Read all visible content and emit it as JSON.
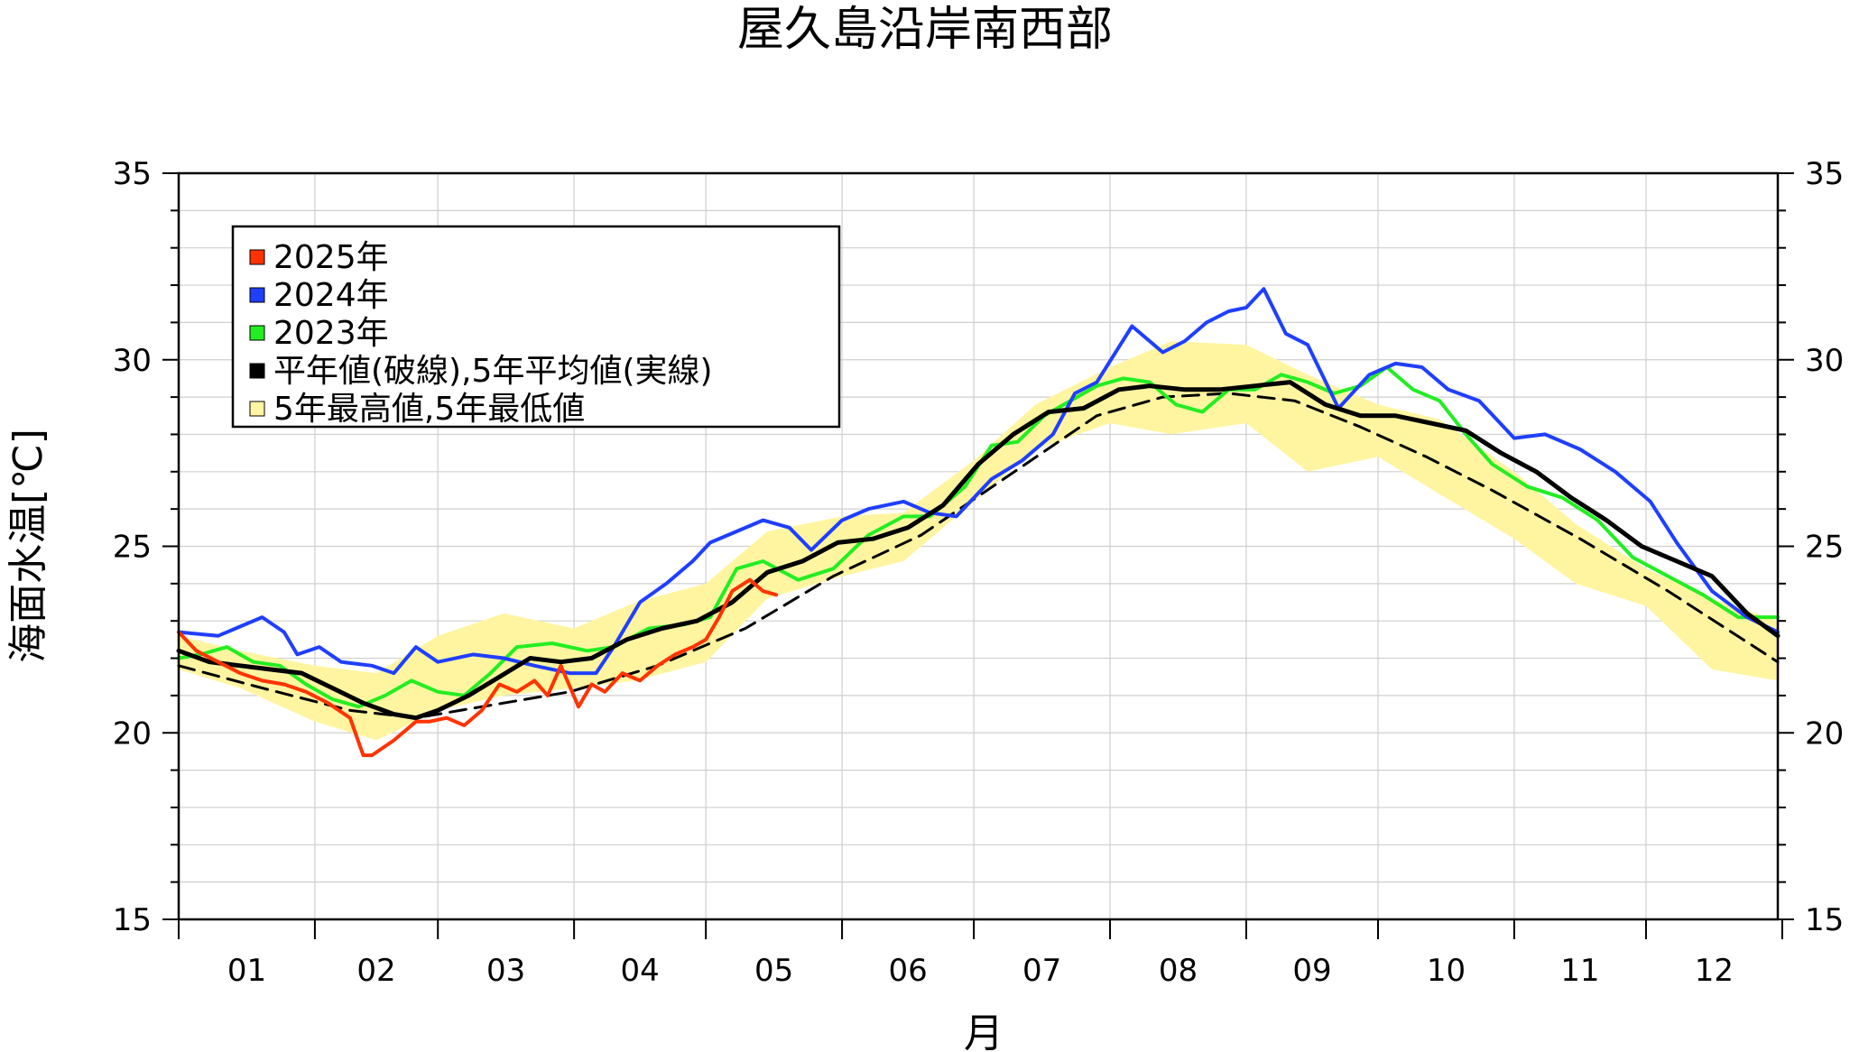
{
  "chart_data": {
    "type": "line",
    "title": "屋久島沿岸南西部",
    "xlabel": "月",
    "ylabel": "海面水温[℃]",
    "ylim": [
      15,
      35
    ],
    "yticks": [
      "15",
      "20",
      "25",
      "30",
      "35"
    ],
    "month_labels": [
      "01",
      "02",
      "03",
      "04",
      "05",
      "06",
      "07",
      "08",
      "09",
      "10",
      "11",
      "12"
    ],
    "grid": true,
    "legend_position": "top-left",
    "legend": [
      {
        "label": "2025年",
        "color": "#ff3300"
      },
      {
        "label": "2024年",
        "color": "#1f3fff"
      },
      {
        "label": "2023年",
        "color": "#22ee22"
      },
      {
        "label": "平年値(破線),5年平均値(実線)",
        "color": "#000000"
      },
      {
        "label": "5年最高値,5年最低値",
        "color": "#fff5a0"
      }
    ],
    "x_unit": "day of year",
    "band_5yr": {
      "x": [
        1,
        15,
        32,
        46,
        60,
        75,
        91,
        105,
        121,
        135,
        152,
        166,
        182,
        196,
        213,
        227,
        244,
        258,
        274,
        288,
        305,
        319,
        335,
        350,
        365
      ],
      "high": [
        22.6,
        22.2,
        21.8,
        21.6,
        22.6,
        23.2,
        22.8,
        23.5,
        24.0,
        25.4,
        25.8,
        25.9,
        27.3,
        28.8,
        29.8,
        30.5,
        30.4,
        29.6,
        28.8,
        28.4,
        27.0,
        25.6,
        24.4,
        23.6,
        23.0
      ],
      "low": [
        21.7,
        21.2,
        20.3,
        19.8,
        20.6,
        21.0,
        21.2,
        21.4,
        21.9,
        23.6,
        24.2,
        24.6,
        26.2,
        27.6,
        28.3,
        28.0,
        28.3,
        27.0,
        27.4,
        26.4,
        25.2,
        24.0,
        23.4,
        21.7,
        21.4
      ]
    },
    "series": [
      {
        "name": "2025年",
        "color": "#ff3300",
        "x": [
          1,
          5,
          10,
          15,
          20,
          25,
          30,
          35,
          40,
          43,
          45,
          50,
          55,
          58,
          62,
          66,
          70,
          74,
          78,
          82,
          85,
          88,
          92,
          95,
          98,
          102,
          106,
          110,
          114,
          118,
          121,
          124,
          127,
          131,
          134,
          137
        ],
        "values": [
          22.7,
          22.2,
          21.9,
          21.6,
          21.4,
          21.3,
          21.1,
          20.8,
          20.4,
          19.4,
          19.4,
          19.8,
          20.3,
          20.3,
          20.4,
          20.2,
          20.6,
          21.3,
          21.1,
          21.4,
          21.0,
          21.8,
          20.7,
          21.3,
          21.1,
          21.6,
          21.4,
          21.8,
          22.1,
          22.3,
          22.5,
          23.1,
          23.8,
          24.1,
          23.8,
          23.7
        ]
      },
      {
        "name": "2024年",
        "color": "#1f3fff",
        "x": [
          1,
          10,
          20,
          25,
          28,
          33,
          38,
          45,
          50,
          55,
          60,
          68,
          75,
          82,
          90,
          96,
          100,
          106,
          112,
          118,
          122,
          128,
          134,
          140,
          145,
          152,
          158,
          166,
          172,
          178,
          186,
          193,
          200,
          205,
          210,
          218,
          225,
          230,
          235,
          240,
          244,
          248,
          253,
          258,
          265,
          272,
          278,
          284,
          290,
          297,
          305,
          312,
          320,
          328,
          336,
          342,
          350,
          358,
          365
        ],
        "values": [
          22.7,
          22.6,
          23.1,
          22.7,
          22.1,
          22.3,
          21.9,
          21.8,
          21.6,
          22.3,
          21.9,
          22.1,
          22.0,
          21.8,
          21.6,
          21.6,
          22.3,
          23.5,
          24.0,
          24.6,
          25.1,
          25.4,
          25.7,
          25.5,
          24.9,
          25.7,
          26.0,
          26.2,
          25.9,
          25.8,
          26.8,
          27.3,
          28.0,
          29.1,
          29.4,
          30.9,
          30.2,
          30.5,
          31.0,
          31.3,
          31.4,
          31.9,
          30.7,
          30.4,
          28.7,
          29.6,
          29.9,
          29.8,
          29.2,
          28.9,
          27.9,
          28.0,
          27.6,
          27.0,
          26.2,
          25.1,
          23.8,
          23.1,
          22.7
        ]
      },
      {
        "name": "2023年",
        "color": "#22ee22",
        "x": [
          1,
          6,
          12,
          18,
          24,
          30,
          36,
          42,
          48,
          54,
          60,
          66,
          72,
          78,
          86,
          94,
          100,
          108,
          116,
          122,
          128,
          134,
          142,
          150,
          158,
          166,
          172,
          180,
          186,
          192,
          198,
          204,
          210,
          216,
          222,
          228,
          234,
          240,
          246,
          252,
          258,
          264,
          270,
          276,
          282,
          288,
          294,
          300,
          308,
          316,
          324,
          332,
          340,
          348,
          356,
          365
        ],
        "values": [
          22.0,
          22.1,
          22.3,
          21.9,
          21.8,
          21.3,
          20.9,
          20.7,
          21.0,
          21.4,
          21.1,
          21.0,
          21.6,
          22.3,
          22.4,
          22.2,
          22.3,
          22.8,
          22.9,
          23.1,
          24.4,
          24.6,
          24.1,
          24.4,
          25.3,
          25.8,
          25.8,
          26.6,
          27.7,
          27.8,
          28.5,
          28.9,
          29.3,
          29.5,
          29.4,
          28.8,
          28.6,
          29.2,
          29.2,
          29.6,
          29.4,
          29.1,
          29.3,
          29.8,
          29.2,
          28.9,
          28.0,
          27.2,
          26.6,
          26.3,
          25.7,
          24.7,
          24.2,
          23.7,
          23.1,
          23.1
        ]
      },
      {
        "name": "5年平均値",
        "color": "#000000",
        "x": [
          1,
          8,
          15,
          22,
          29,
          36,
          43,
          50,
          55,
          60,
          67,
          74,
          81,
          88,
          95,
          103,
          111,
          119,
          127,
          135,
          143,
          151,
          159,
          167,
          175,
          183,
          191,
          199,
          207,
          215,
          222,
          230,
          238,
          246,
          254,
          262,
          270,
          278,
          286,
          294,
          302,
          310,
          318,
          326,
          334,
          342,
          350,
          358,
          365
        ],
        "values": [
          22.2,
          21.9,
          21.8,
          21.7,
          21.6,
          21.2,
          20.8,
          20.5,
          20.4,
          20.6,
          21.0,
          21.5,
          22.0,
          21.9,
          22.0,
          22.5,
          22.8,
          23.0,
          23.5,
          24.3,
          24.6,
          25.1,
          25.2,
          25.5,
          26.1,
          27.2,
          28.0,
          28.6,
          28.7,
          29.2,
          29.3,
          29.2,
          29.2,
          29.3,
          29.4,
          28.8,
          28.5,
          28.5,
          28.3,
          28.1,
          27.5,
          27.0,
          26.3,
          25.7,
          25.0,
          24.6,
          24.2,
          23.2,
          22.6
        ]
      },
      {
        "name": "平年値",
        "color": "#000000",
        "dashed": true,
        "x": [
          1,
          20,
          40,
          55,
          70,
          90,
          110,
          130,
          150,
          170,
          190,
          210,
          225,
          240,
          255,
          270,
          285,
          300,
          320,
          340,
          365
        ],
        "values": [
          21.8,
          21.2,
          20.6,
          20.4,
          20.7,
          21.1,
          21.8,
          22.8,
          24.2,
          25.3,
          26.9,
          28.5,
          29.0,
          29.1,
          28.9,
          28.2,
          27.4,
          26.5,
          25.2,
          23.8,
          21.9
        ]
      }
    ]
  }
}
